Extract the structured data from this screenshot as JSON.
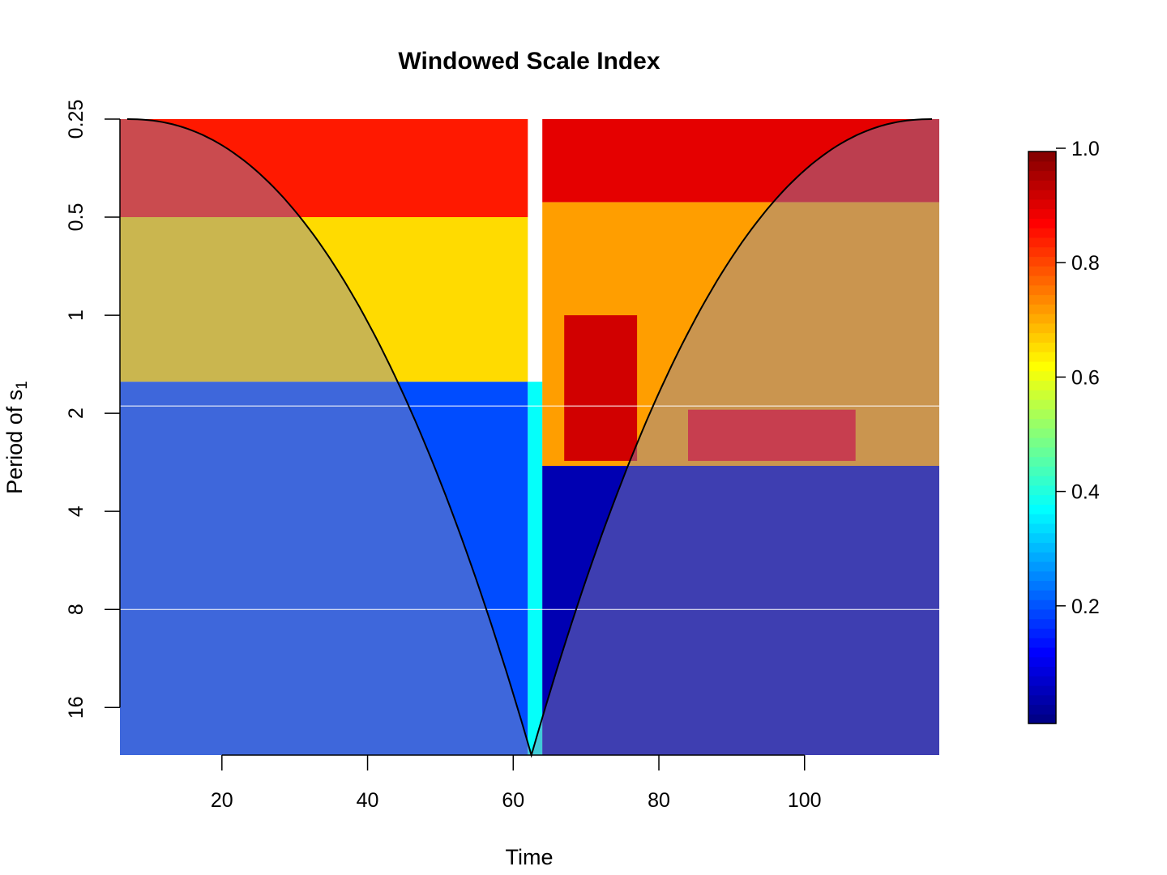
{
  "chart_data": {
    "type": "heatmap",
    "title": "Windowed Scale Index",
    "xlabel": "Time",
    "ylabel": "Period of s",
    "ylabel_subscript": "1",
    "x_ticks": [
      20,
      40,
      60,
      80,
      100
    ],
    "xlim": [
      6,
      118.5
    ],
    "y_ticks": [
      {
        "value": 0.25,
        "label": "0.25"
      },
      {
        "value": 0.5,
        "label": "0.5"
      },
      {
        "value": 1,
        "label": "1"
      },
      {
        "value": 2,
        "label": "2"
      },
      {
        "value": 4,
        "label": "4"
      },
      {
        "value": 8,
        "label": "8"
      },
      {
        "value": 16,
        "label": "16"
      }
    ],
    "y_scale": "log2-reversed",
    "ylim": [
      0.25,
      22.4
    ],
    "reference_lines_y": [
      1.9,
      8
    ],
    "cone_of_influence": {
      "start": 7,
      "apex": 62.5,
      "end": 117.5,
      "apex_period": 22.4
    },
    "colorbar": {
      "ticks": [
        {
          "value": 0.2,
          "label": "0.2"
        },
        {
          "value": 0.4,
          "label": "0.4"
        },
        {
          "value": 0.6,
          "label": "0.6"
        },
        {
          "value": 0.8,
          "label": "0.8"
        },
        {
          "value": 1.0,
          "label": "1.0"
        }
      ],
      "range": [
        0,
        1
      ],
      "colormap": [
        "#00007F",
        "#0000FF",
        "#007FFF",
        "#00FFFF",
        "#7FFF7F",
        "#FFFF00",
        "#FF7F00",
        "#FF0000",
        "#7F0000"
      ]
    },
    "regions": [
      {
        "x": [
          6,
          62
        ],
        "y": [
          0.25,
          0.5
        ],
        "value": 0.85
      },
      {
        "x": [
          6,
          62
        ],
        "y": [
          0.5,
          1.6
        ],
        "value": 0.66
      },
      {
        "x": [
          6,
          62
        ],
        "y": [
          1.6,
          22.4
        ],
        "value": 0.2
      },
      {
        "x": [
          62,
          64
        ],
        "y": [
          1.6,
          22.4
        ],
        "value": 0.38
      },
      {
        "x": [
          64,
          118.5
        ],
        "y": [
          0.25,
          0.45
        ],
        "value": 0.9
      },
      {
        "x": [
          64,
          118.5
        ],
        "y": [
          0.45,
          2.9
        ],
        "value": 0.72
      },
      {
        "x": [
          67,
          77
        ],
        "y": [
          1.0,
          2.8
        ],
        "value": 0.92
      },
      {
        "x": [
          84,
          107
        ],
        "y": [
          1.95,
          2.8
        ],
        "value": 0.88
      },
      {
        "x": [
          64,
          118.5
        ],
        "y": [
          2.9,
          22.4
        ],
        "value": 0.05
      }
    ]
  }
}
